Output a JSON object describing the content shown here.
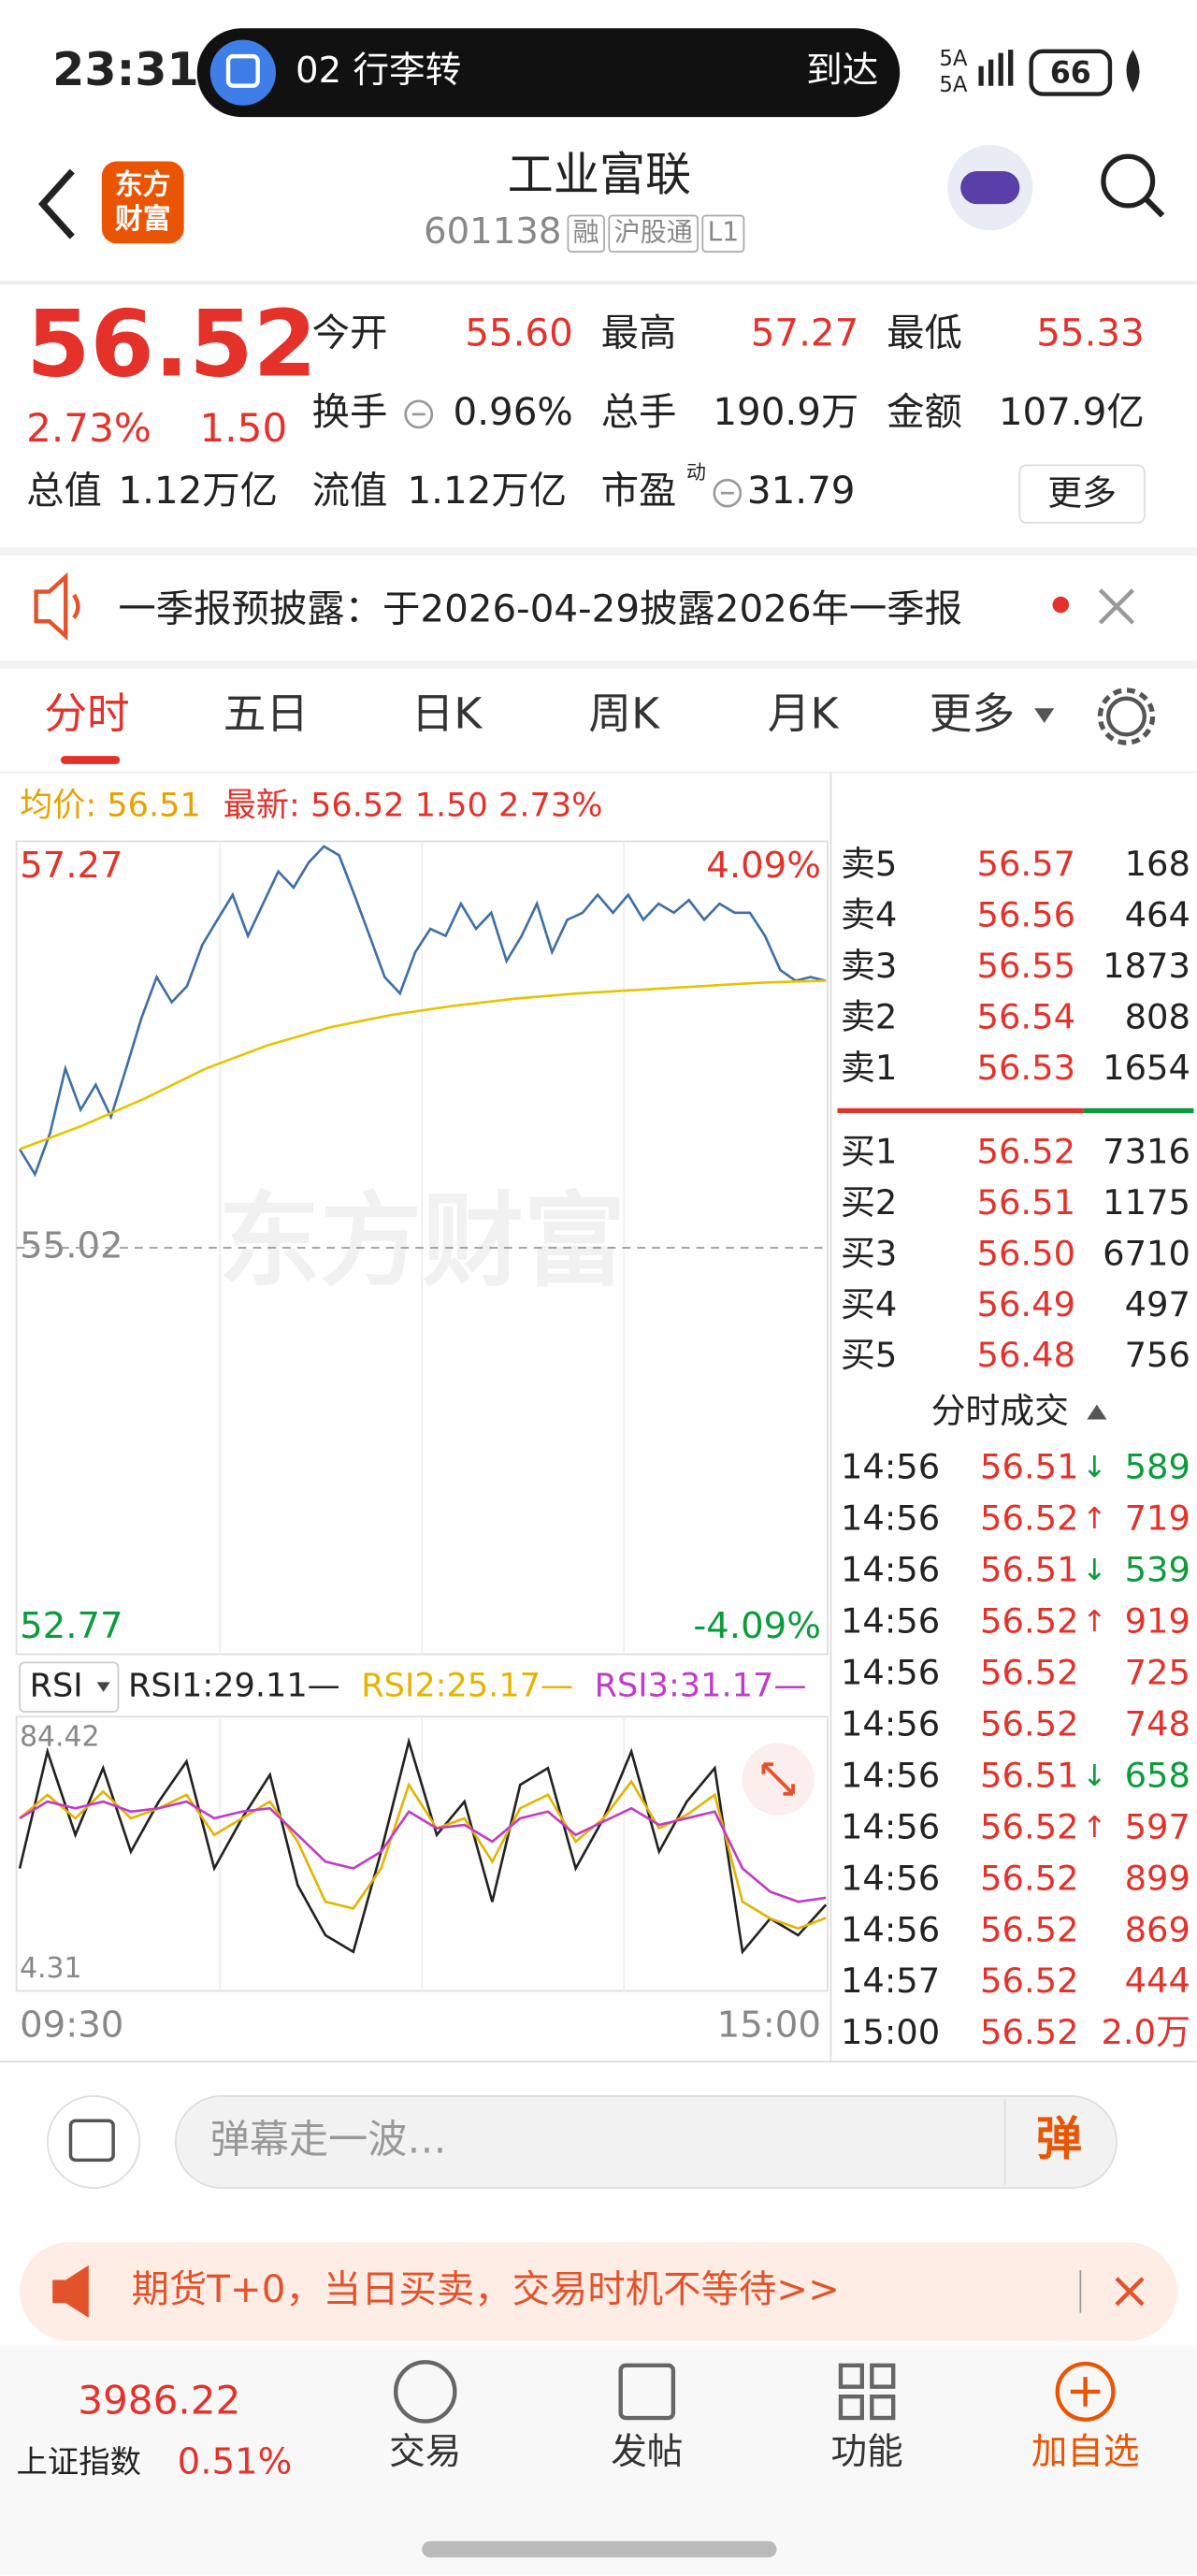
{
  "status_bar": {
    "time": "23:31",
    "notice": "02 行李转",
    "notice_action": "到达",
    "signal_labels": [
      "5A",
      "5A"
    ],
    "battery": "66"
  },
  "header": {
    "logo_lines": [
      "东方",
      "财富"
    ],
    "title": "工业富联",
    "code": "601138",
    "tags": [
      "融",
      "沪股通",
      "L1"
    ]
  },
  "quote": {
    "price": "56.52",
    "change_pct": "2.73%",
    "change": "1.50",
    "fields": [
      {
        "label": "今开",
        "value": "55.60"
      },
      {
        "label": "最高",
        "value": "57.27"
      },
      {
        "label": "最低",
        "value": "55.33"
      },
      {
        "label": "换手",
        "value": "0.96%"
      },
      {
        "label": "总手",
        "value": "190.9万"
      },
      {
        "label": "金额",
        "value": "107.9亿"
      },
      {
        "label": "总值",
        "value": "1.12万亿"
      },
      {
        "label": "流值",
        "value": "1.12万亿"
      },
      {
        "label": "市盈",
        "sup": "动",
        "value": "31.79"
      }
    ],
    "more": "更多"
  },
  "announcement": {
    "text": "一季报预披露：于2026-04-29披露2026年一季报"
  },
  "tabs": [
    "分时",
    "五日",
    "日K",
    "周K",
    "月K",
    "更多"
  ],
  "chart_header": {
    "avg": "均价: 56.51",
    "latest": "最新: 56.52 1.50 2.73%"
  },
  "watermark": "东方财富",
  "chart_data": [
    {
      "type": "line",
      "ylim": [
        52.77,
        57.27
      ],
      "yticks": [
        57.27,
        55.02,
        52.77
      ],
      "grid": true,
      "y2lim": [
        -4.09,
        4.09
      ],
      "y2ticks": [
        {
          "value": 4.09,
          "label": "4.09%"
        },
        {
          "value": -4.09,
          "label": "-4.09%"
        }
      ],
      "series": [
        {
          "color": "#3e6fa8",
          "values": [
            55.57,
            55.43,
            55.66,
            56.02,
            55.79,
            55.93,
            55.75,
            56.02,
            56.3,
            56.53,
            56.39,
            56.48,
            56.71,
            56.85,
            56.99,
            56.76,
            56.94,
            57.12,
            57.03,
            57.17,
            57.26,
            57.21,
            56.99,
            56.76,
            56.53,
            56.44,
            56.67,
            56.8,
            56.76,
            56.94,
            56.8,
            56.89,
            56.62,
            56.76,
            56.94,
            56.67,
            56.85,
            56.89,
            56.99,
            56.89,
            56.99,
            56.85,
            56.94,
            56.89,
            56.96,
            56.85,
            56.94,
            56.89,
            56.89,
            56.76,
            56.57,
            56.51,
            56.53,
            56.51
          ]
        },
        {
          "color": "#e5c400",
          "values": [
            55.57,
            55.7,
            55.85,
            56.02,
            56.15,
            56.25,
            56.32,
            56.37,
            56.41,
            56.44,
            56.46,
            56.48,
            56.5,
            56.51
          ]
        }
      ]
    },
    {
      "type": "line",
      "selector": "RSI",
      "ylim": [
        4.31,
        84.42
      ],
      "yticks": [
        84.42,
        4.31
      ],
      "x_labels": [
        "09:30",
        "15:00"
      ],
      "series": [
        {
          "name": "RSI1:29.11—",
          "color": "#222222",
          "values": [
            40,
            75,
            50,
            70,
            45,
            60,
            72,
            40,
            55,
            68,
            35,
            20,
            15,
            45,
            78,
            50,
            60,
            30,
            65,
            70,
            40,
            55,
            75,
            45,
            60,
            70,
            15,
            25,
            20,
            29.11
          ]
        },
        {
          "name": "RSI2:25.17—",
          "color": "#e5b300",
          "values": [
            55,
            62,
            55,
            63,
            55,
            58,
            62,
            50,
            55,
            60,
            48,
            30,
            28,
            40,
            65,
            52,
            55,
            42,
            58,
            62,
            48,
            55,
            66,
            52,
            56,
            62,
            30,
            25,
            22,
            25.17
          ]
        },
        {
          "name": "RSI3:31.17—",
          "color": "#c23bc7",
          "values": [
            55,
            60,
            58,
            60,
            57,
            58,
            60,
            55,
            57,
            58,
            50,
            42,
            40,
            45,
            57,
            52,
            53,
            48,
            55,
            57,
            50,
            54,
            58,
            53,
            55,
            57,
            40,
            33,
            30,
            31.17
          ]
        }
      ]
    }
  ],
  "order_book": {
    "asks": [
      {
        "label": "卖5",
        "price": "56.57",
        "volume": "168"
      },
      {
        "label": "卖4",
        "price": "56.56",
        "volume": "464"
      },
      {
        "label": "卖3",
        "price": "56.55",
        "volume": "1873"
      },
      {
        "label": "卖2",
        "price": "56.54",
        "volume": "808"
      },
      {
        "label": "卖1",
        "price": "56.53",
        "volume": "1654"
      }
    ],
    "bids": [
      {
        "label": "买1",
        "price": "56.52",
        "volume": "7316"
      },
      {
        "label": "买2",
        "price": "56.51",
        "volume": "1175"
      },
      {
        "label": "买3",
        "price": "56.50",
        "volume": "6710"
      },
      {
        "label": "买4",
        "price": "56.49",
        "volume": "497"
      },
      {
        "label": "买5",
        "price": "56.48",
        "volume": "756"
      }
    ],
    "trades_title": "分时成交",
    "trades": [
      {
        "time": "14:56",
        "price": "56.51",
        "arrow": "↓",
        "volume": "589"
      },
      {
        "time": "14:56",
        "price": "56.52",
        "arrow": "↑",
        "volume": "719"
      },
      {
        "time": "14:56",
        "price": "56.51",
        "arrow": "↓",
        "volume": "539"
      },
      {
        "time": "14:56",
        "price": "56.52",
        "arrow": "↑",
        "volume": "919"
      },
      {
        "time": "14:56",
        "price": "56.52",
        "arrow": null,
        "volume": "725"
      },
      {
        "time": "14:56",
        "price": "56.52",
        "arrow": null,
        "volume": "748"
      },
      {
        "time": "14:56",
        "price": "56.51",
        "arrow": "↓",
        "volume": "658"
      },
      {
        "time": "14:56",
        "price": "56.52",
        "arrow": "↑",
        "volume": "597"
      },
      {
        "time": "14:56",
        "price": "56.52",
        "arrow": null,
        "volume": "899"
      },
      {
        "time": "14:56",
        "price": "56.52",
        "arrow": null,
        "volume": "869"
      },
      {
        "time": "14:57",
        "price": "56.52",
        "arrow": null,
        "volume": "444"
      },
      {
        "time": "15:00",
        "price": "56.52",
        "arrow": null,
        "volume": "2.0万"
      }
    ]
  },
  "comment": {
    "placeholder": "弹幕走一波…",
    "button": "弹"
  },
  "ad": {
    "text": "期货T+0，当日买卖，交易时机不等待>>"
  },
  "bottom_nav": {
    "index_value": "3986.22",
    "index_name": "上证指数",
    "index_change": "0.51%",
    "items": [
      "交易",
      "发帖",
      "功能",
      "加自选"
    ]
  }
}
